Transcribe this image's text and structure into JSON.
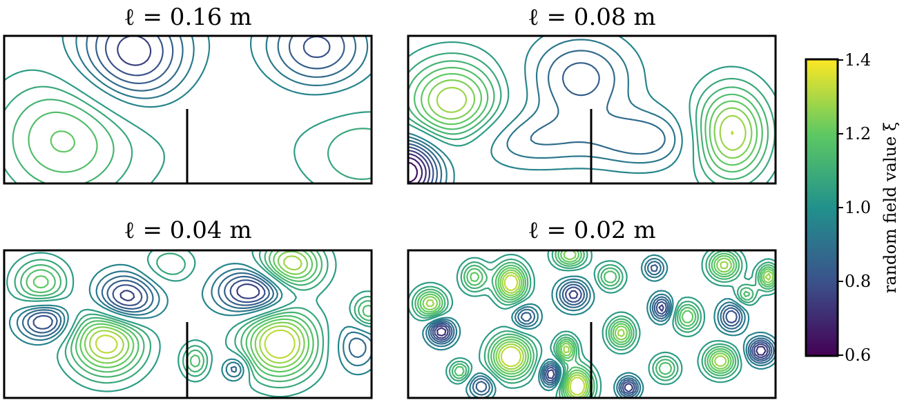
{
  "chart_data": [
    {
      "type": "contour",
      "title": "ℓ = 0.16 m",
      "correlation_length_m": 0.16
    },
    {
      "type": "contour",
      "title": "ℓ = 0.08 m",
      "correlation_length_m": 0.08
    },
    {
      "type": "contour",
      "title": "ℓ = 0.04 m",
      "correlation_length_m": 0.04
    },
    {
      "type": "contour",
      "title": "ℓ = 0.02 m",
      "correlation_length_m": 0.02
    }
  ],
  "colorbar": {
    "label": "random field value ξ",
    "range": [
      0.6,
      1.4
    ],
    "ticks": [
      "1.4",
      "1.2",
      "1.0",
      "0.8",
      "0.6"
    ],
    "colormap": "viridis",
    "colors": [
      "#440154",
      "#3b528b",
      "#21918c",
      "#5ec962",
      "#fde725"
    ]
  }
}
